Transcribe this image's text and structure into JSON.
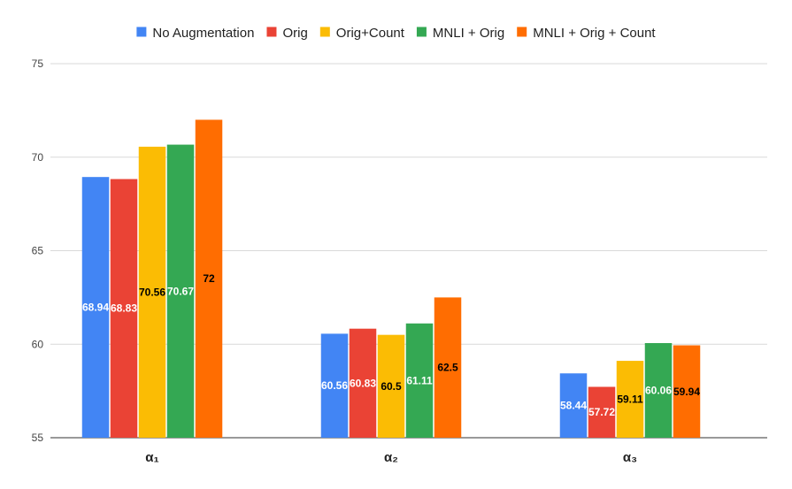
{
  "chart_data": {
    "type": "bar",
    "title": "",
    "xlabel": "",
    "ylabel": "",
    "categories": [
      "α₁",
      "α₂",
      "α₃"
    ],
    "ylim": [
      55,
      75
    ],
    "yticks": [
      55,
      60,
      65,
      70,
      75
    ],
    "grid": true,
    "legend_position": "top",
    "series": [
      {
        "name": "No Augmentation",
        "color": "#4285F4",
        "label_color": "#ffffff",
        "values": [
          68.94,
          60.56,
          58.44
        ]
      },
      {
        "name": "Orig",
        "color": "#EA4335",
        "label_color": "#ffffff",
        "values": [
          68.83,
          60.83,
          57.72
        ]
      },
      {
        "name": "Orig+Count",
        "color": "#FBBC04",
        "label_color": "#000000",
        "values": [
          70.56,
          60.5,
          59.11
        ]
      },
      {
        "name": "MNLI + Orig",
        "color": "#34A853",
        "label_color": "#ffffff",
        "values": [
          70.67,
          61.11,
          60.06
        ]
      },
      {
        "name": "MNLI + Orig + Count",
        "color": "#FF6D01",
        "label_color": "#000000",
        "values": [
          72,
          62.5,
          59.94
        ]
      }
    ]
  }
}
